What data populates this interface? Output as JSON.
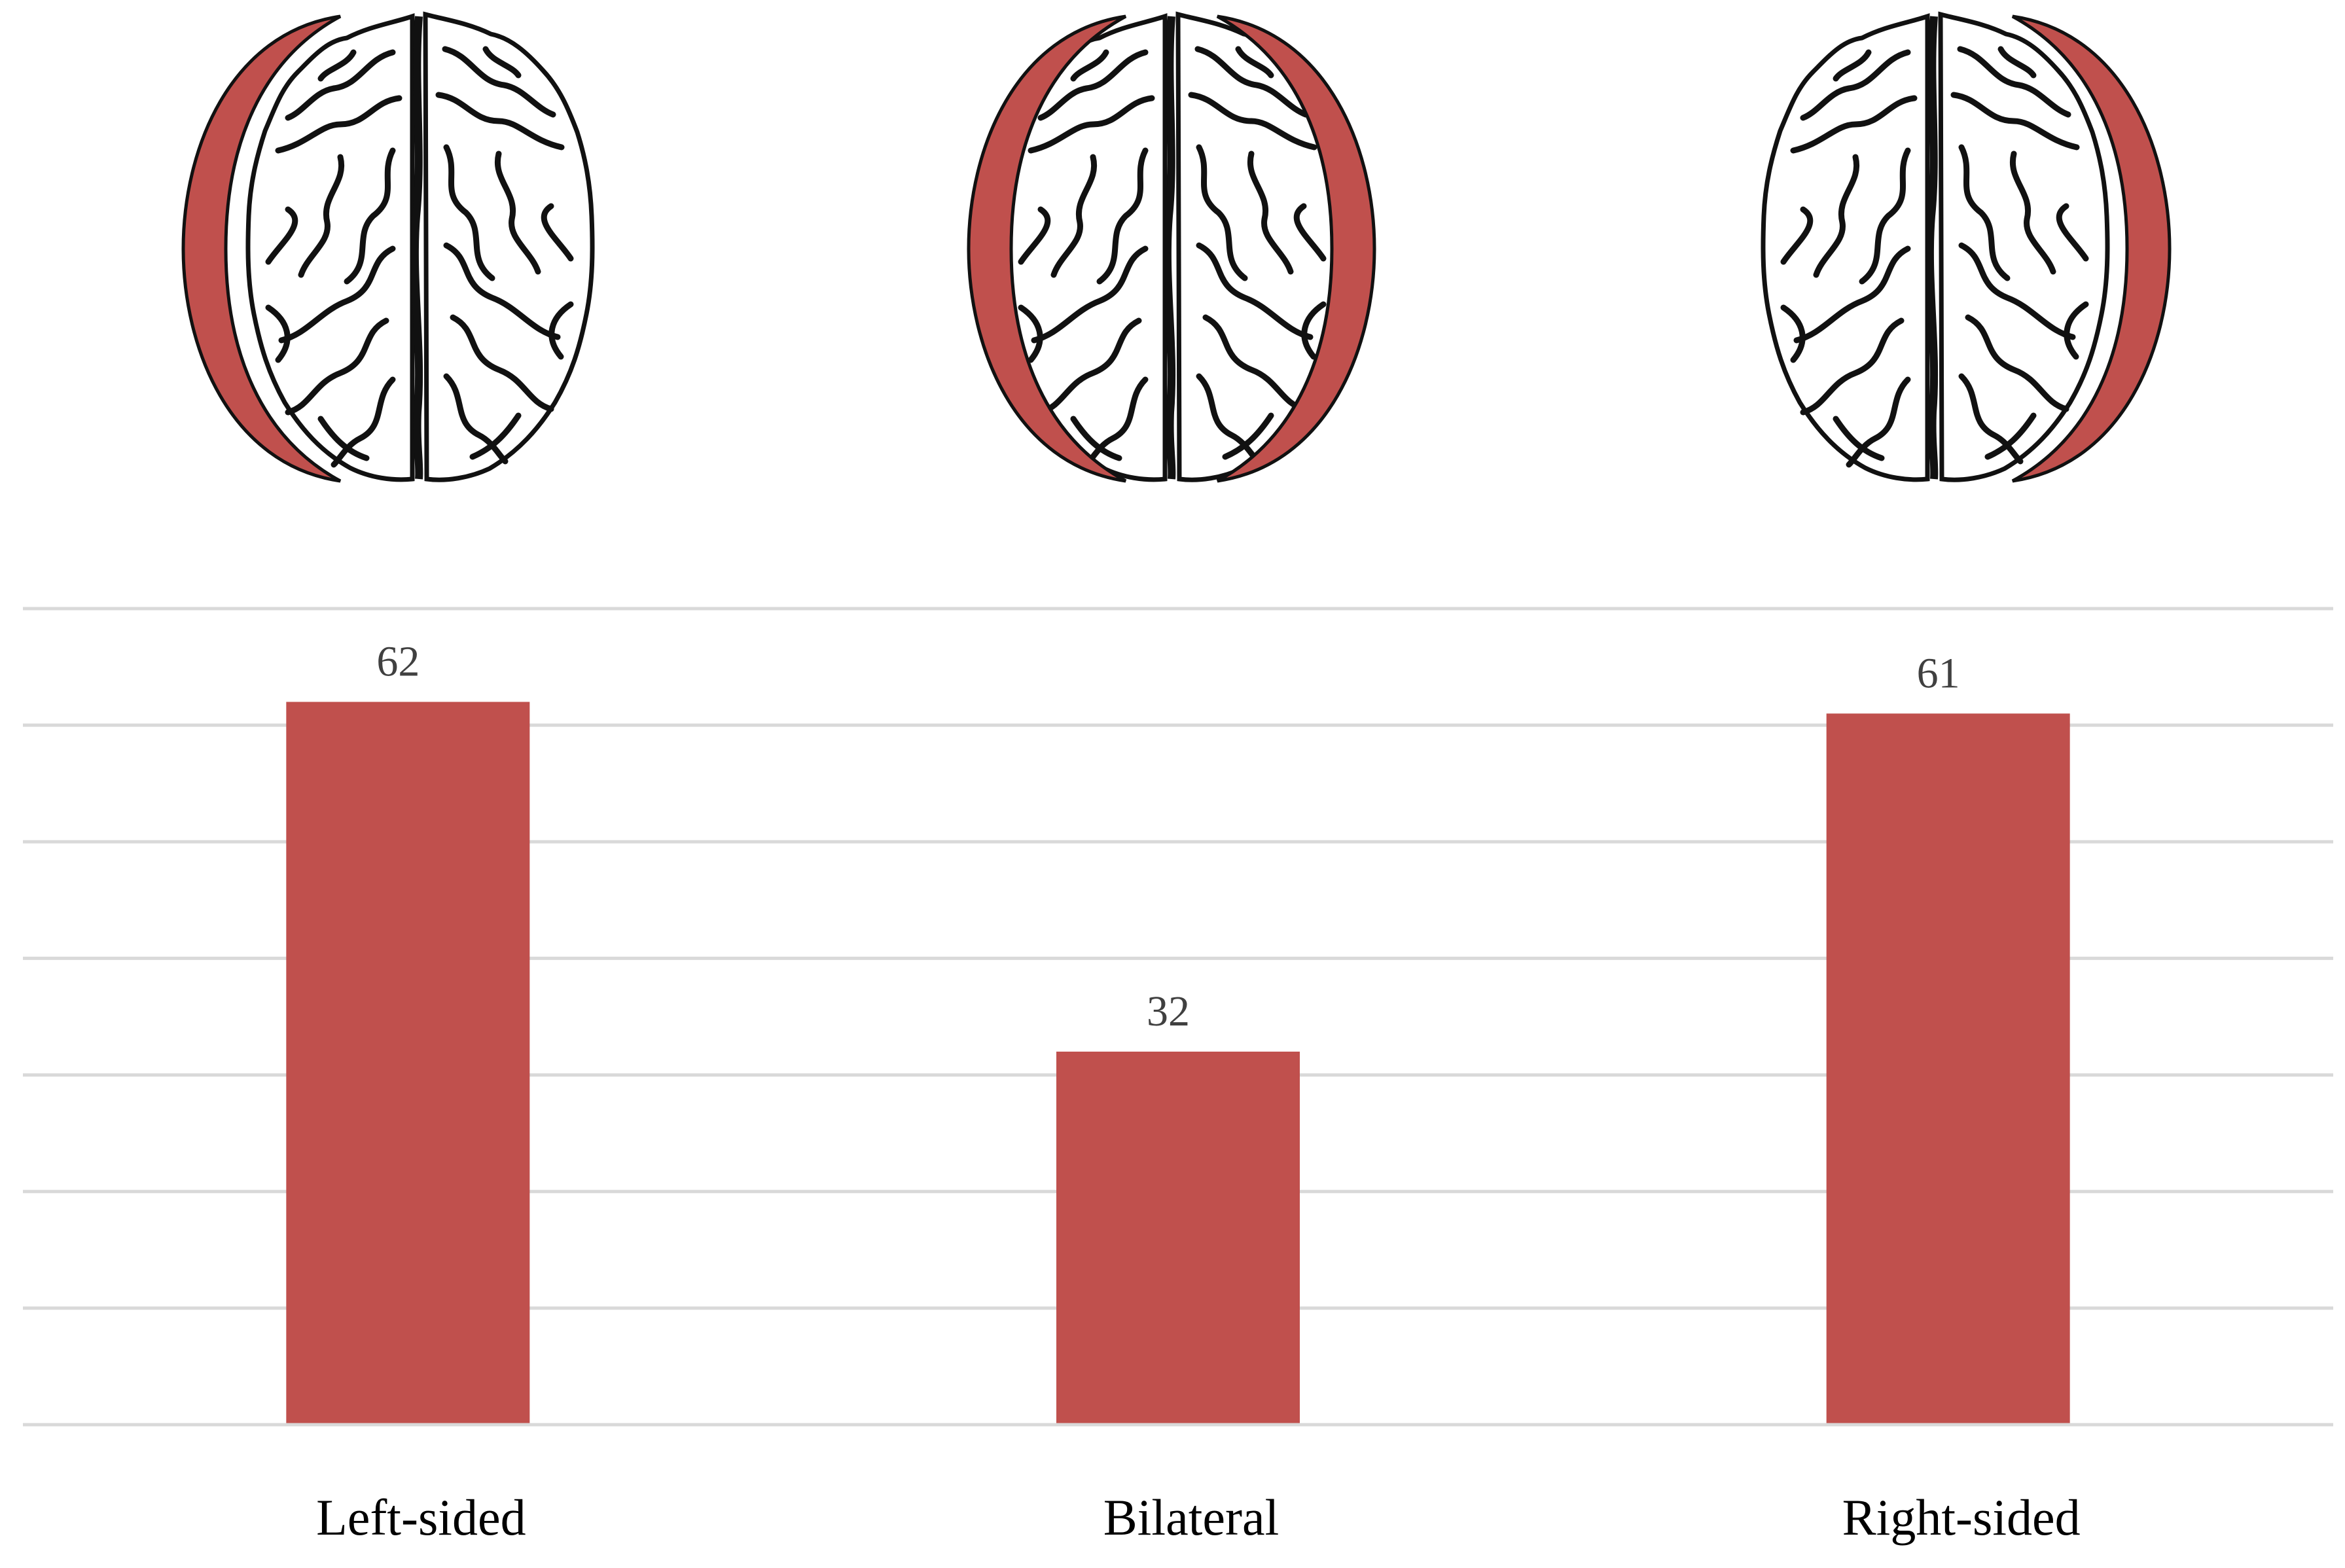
{
  "chart_data": {
    "type": "bar",
    "categories": [
      "Left-sided",
      "Bilateral",
      "Right-sided"
    ],
    "values": [
      62,
      32,
      61
    ],
    "title": "",
    "xlabel": "",
    "ylabel": "",
    "ylim": [
      0,
      70
    ],
    "grid": true,
    "data_labels": true,
    "bar_color": "#c0504d",
    "legend": "none"
  },
  "brain_icons": [
    {
      "name": "left-hemisphere-highlighted",
      "highlight": "left"
    },
    {
      "name": "both-hemispheres-highlighted",
      "highlight": "both"
    },
    {
      "name": "right-hemisphere-highlighted",
      "highlight": "right"
    }
  ],
  "colors": {
    "bar": "#c0504d",
    "highlight": "#c0504d",
    "grid": "#d9d9d9"
  }
}
